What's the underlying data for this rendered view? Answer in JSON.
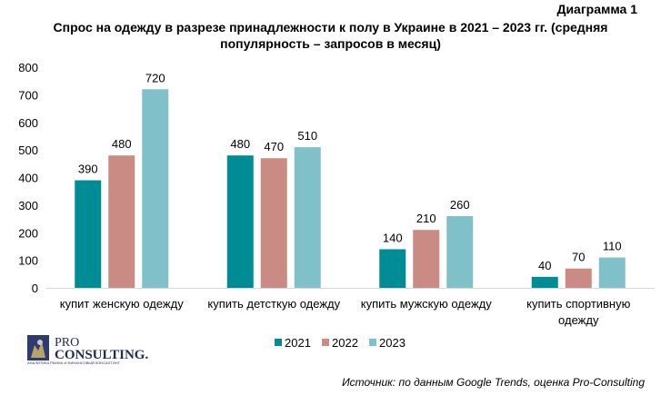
{
  "header": {
    "diagram_label": "Диаграмма 1",
    "title_line1": "Спрос на одежду в разрезе принадлежности к полу в Украине в 2021 – 2023 гг. (средняя",
    "title_line2": "популярность – запросов в месяц)"
  },
  "chart_data": {
    "type": "bar",
    "title": "Спрос на одежду в разрезе принадлежности к полу в Украине в 2021 – 2023 гг. (средняя популярность – запросов в месяц)",
    "categories": [
      "купит женскую одежду",
      "купить детсткую одежду",
      "купить мужскую одежду",
      "купить спортивную одежду"
    ],
    "category_lines": [
      [
        "купит женскую одежду"
      ],
      [
        "купить детсткую одежду"
      ],
      [
        "купить мужскую одежду"
      ],
      [
        "купить спортивную",
        "одежду"
      ]
    ],
    "series": [
      {
        "name": "2021",
        "color": "#008C95",
        "values": [
          390,
          480,
          140,
          40
        ]
      },
      {
        "name": "2022",
        "color": "#C98B83",
        "values": [
          480,
          470,
          210,
          70
        ]
      },
      {
        "name": "2023",
        "color": "#80C0C8",
        "values": [
          720,
          510,
          260,
          110
        ]
      }
    ],
    "ylim": [
      0,
      800
    ],
    "yticks": [
      0,
      100,
      200,
      300,
      400,
      500,
      600,
      700,
      800
    ],
    "grid": false,
    "legend": "bottom-center"
  },
  "logo": {
    "line1": "PRO",
    "line2": "CONSULTING.",
    "tagline": "АНАЛИТИКА РЫНКА И ФИНАНСОВЫЙ КОНСАЛТИНГ"
  },
  "source": "Источник: по данным Google Trends, оценка Pro-Consulting"
}
